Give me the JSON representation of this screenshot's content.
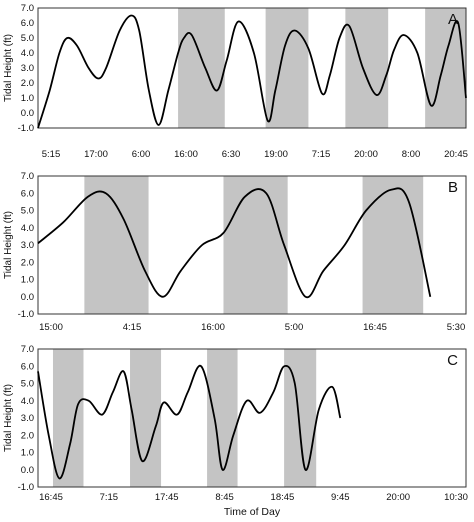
{
  "chart_data": [
    {
      "type": "line",
      "panel_label": "A",
      "ylabel": "Tidal Height (ft)",
      "xlabel": "",
      "ylim": [
        -1.0,
        7.0
      ],
      "yticks": [
        "-1.0",
        "0.0",
        "1.0",
        "2.0",
        "3.0",
        "4.0",
        "5.0",
        "6.0",
        "7.0"
      ],
      "xlim": [
        0,
        11
      ],
      "xtick_labels": [
        "5:15",
        "17:00",
        "6:00",
        "16:00",
        "6:30",
        "19:00",
        "7:15",
        "20:00",
        "8:00",
        "20:45"
      ],
      "shaded_ranges": [
        [
          3.6,
          4.8
        ],
        [
          5.85,
          6.95
        ],
        [
          7.9,
          9.0
        ],
        [
          9.95,
          11.0
        ],
        [
          10.9,
          11.0
        ]
      ],
      "series": [
        {
          "x": [
            0,
            0.3,
            0.55,
            0.75,
            1.0,
            1.3,
            1.55,
            1.75,
            2.1,
            2.4,
            2.6,
            2.85,
            3.1,
            3.35,
            3.6,
            3.75,
            3.95,
            4.3,
            4.6,
            4.85,
            5.15,
            5.55,
            5.9,
            6.1,
            6.35,
            6.6,
            6.95,
            7.3,
            7.5,
            7.75,
            8.0,
            8.35,
            8.7,
            8.95,
            9.15,
            9.4,
            9.75,
            10.1,
            10.35,
            10.55,
            10.8,
            11.0
          ],
          "y": [
            -1.0,
            1.5,
            4.0,
            5.0,
            4.5,
            3.0,
            2.3,
            3.0,
            5.5,
            6.5,
            5.5,
            1.5,
            -0.8,
            1.5,
            4.0,
            5.0,
            5.2,
            3.0,
            1.5,
            3.5,
            6.1,
            4.0,
            -0.5,
            1.5,
            4.5,
            5.5,
            4.3,
            1.3,
            2.5,
            5.0,
            5.8,
            3.0,
            1.2,
            2.5,
            4.2,
            5.2,
            4.0,
            0.5,
            2.5,
            4.5,
            6.0,
            1.0
          ]
        }
      ]
    },
    {
      "type": "line",
      "panel_label": "B",
      "ylabel": "Tidal Height (ft)",
      "xlabel": "",
      "ylim": [
        -1.0,
        7.0
      ],
      "yticks": [
        "-1.0",
        "0.0",
        "1.0",
        "2.0",
        "3.0",
        "4.0",
        "5.0",
        "6.0",
        "7.0"
      ],
      "xlim": [
        0,
        6
      ],
      "xtick_labels": [
        "15:00",
        "4:15",
        "16:00",
        "5:00",
        "16:45",
        "5:30"
      ],
      "shaded_ranges": [
        [
          0.65,
          1.55
        ],
        [
          2.6,
          3.5
        ],
        [
          4.55,
          5.4
        ]
      ],
      "series": [
        {
          "x": [
            0,
            0.35,
            0.7,
            0.95,
            1.2,
            1.5,
            1.75,
            2.0,
            2.3,
            2.6,
            2.9,
            3.2,
            3.45,
            3.75,
            4.0,
            4.3,
            4.6,
            4.95,
            5.2,
            5.5
          ],
          "y": [
            3.1,
            4.3,
            5.8,
            6.0,
            4.5,
            1.5,
            0.0,
            1.5,
            3.0,
            3.7,
            5.8,
            6.0,
            3.0,
            0.0,
            1.5,
            3.0,
            5.0,
            6.2,
            5.5,
            0.0
          ]
        }
      ]
    },
    {
      "type": "line",
      "panel_label": "C",
      "ylabel": "Tidal Height (ft)",
      "xlabel": "Time of Day",
      "ylim": [
        -1.0,
        7.0
      ],
      "yticks": [
        "-1.0",
        "0.0",
        "1.0",
        "2.0",
        "3.0",
        "4.0",
        "5.0",
        "6.0",
        "7.0"
      ],
      "xlim": [
        0,
        8
      ],
      "xtick_labels": [
        "16:45",
        "7:15",
        "17:45",
        "8:45",
        "18:45",
        "9:45",
        "20:00",
        "10:30"
      ],
      "shaded_ranges": [
        [
          0.28,
          0.85
        ],
        [
          1.72,
          2.3
        ],
        [
          3.16,
          3.73
        ],
        [
          4.6,
          5.2
        ]
      ],
      "series": [
        {
          "x": [
            0,
            0.2,
            0.4,
            0.6,
            0.75,
            0.95,
            1.2,
            1.4,
            1.6,
            1.75,
            1.95,
            2.2,
            2.35,
            2.6,
            2.8,
            3.05,
            3.3,
            3.45,
            3.65,
            3.9,
            4.15,
            4.4,
            4.6,
            4.8,
            5.0,
            5.25,
            5.5,
            5.65
          ],
          "y": [
            5.7,
            2.0,
            -0.5,
            1.5,
            3.8,
            4.0,
            3.2,
            4.5,
            5.7,
            3.5,
            0.5,
            2.5,
            3.9,
            3.2,
            4.5,
            6.0,
            3.0,
            0.0,
            2.0,
            4.0,
            3.3,
            4.5,
            6.0,
            5.0,
            0.0,
            3.5,
            4.8,
            3.0
          ]
        }
      ]
    }
  ]
}
